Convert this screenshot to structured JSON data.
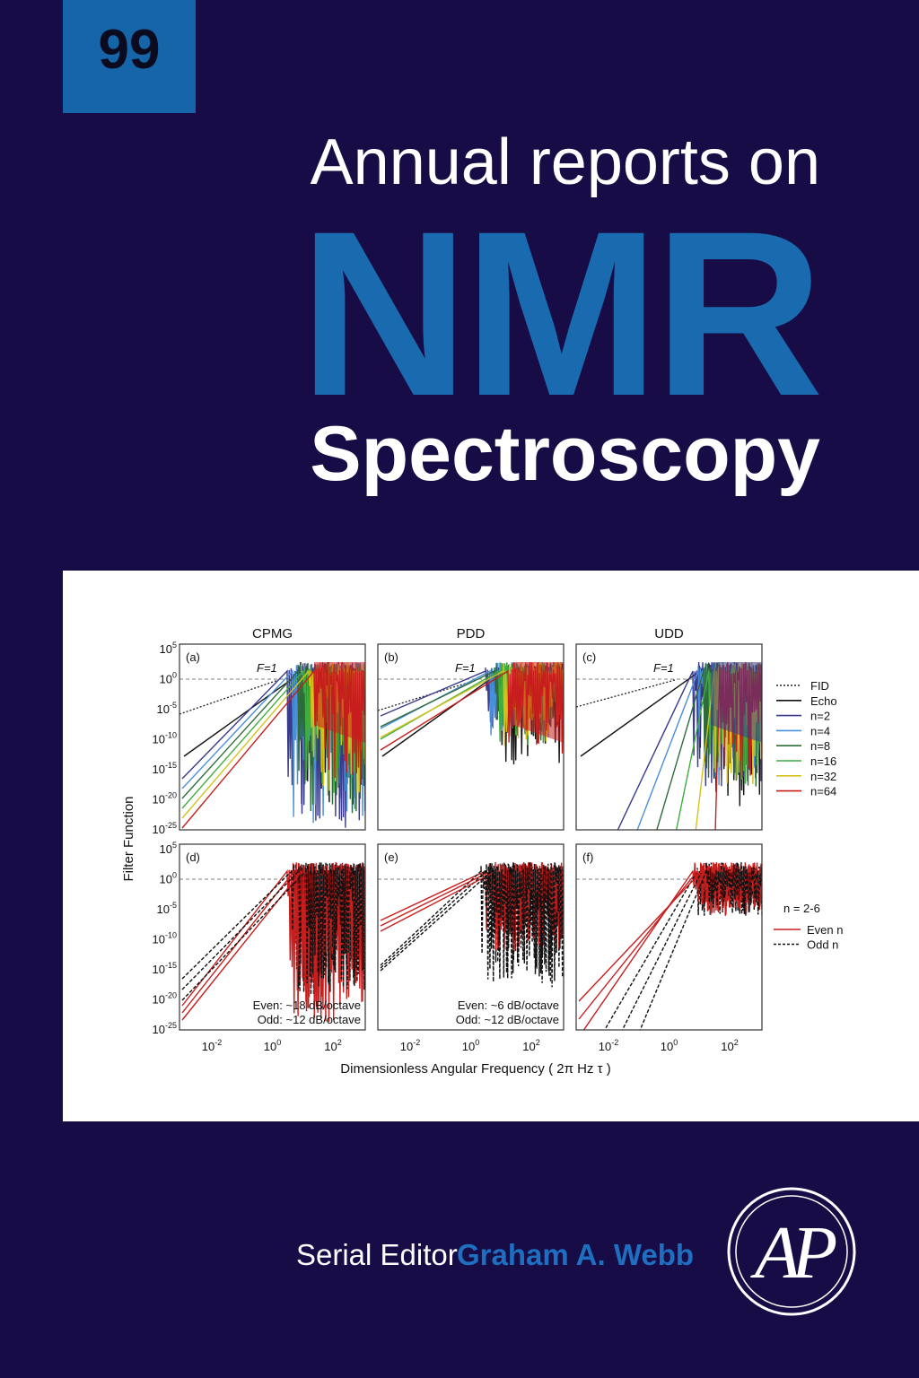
{
  "volume": "99",
  "title": {
    "line1": "Annual reports on",
    "line2": "NMR",
    "line3": "Spectroscopy"
  },
  "figure": {
    "columns": [
      "CPMG",
      "PDD",
      "UDD"
    ],
    "panels": [
      "(a)",
      "(b)",
      "(c)",
      "(d)",
      "(e)",
      "(f)"
    ],
    "f_label": "F=1",
    "y_label": "Filter Function",
    "x_label": "Dimensionless Angular Frequency ( 2π Hz τ )",
    "yticks": [
      {
        "base": "10",
        "exp": "5"
      },
      {
        "base": "10",
        "exp": "0"
      },
      {
        "base": "10",
        "exp": "-5"
      },
      {
        "base": "10",
        "exp": "-10"
      },
      {
        "base": "10",
        "exp": "-15"
      },
      {
        "base": "10",
        "exp": "-20"
      },
      {
        "base": "10",
        "exp": "-25"
      }
    ],
    "xticks": [
      {
        "base": "10",
        "exp": "-2"
      },
      {
        "base": "10",
        "exp": "0"
      },
      {
        "base": "10",
        "exp": "2"
      }
    ],
    "legend_top": [
      "FID",
      "Echo",
      "n=2",
      "n=4",
      "n=8",
      "n=16",
      "n=32",
      "n=64"
    ],
    "legend_bottom": {
      "title": "n = 2-6",
      "items": [
        "Even n",
        "Odd n"
      ]
    },
    "notes": {
      "d": [
        "Even: ~18 dB/octave",
        "Odd: ~12 dB/octave"
      ],
      "e": [
        "Even: ~6 dB/octave",
        "Odd: ~12 dB/octave"
      ]
    }
  },
  "editor": {
    "label": "Serial Editor",
    "name": "Graham A. Webb"
  },
  "logo": "AP"
}
